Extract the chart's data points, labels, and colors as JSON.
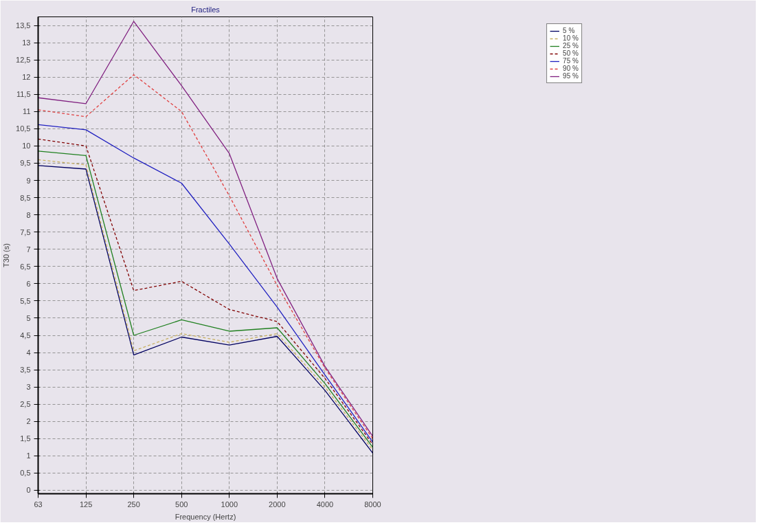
{
  "chart_data": {
    "type": "line",
    "title": "Fractiles",
    "xlabel": "Frequency (Hertz)",
    "ylabel": "T30 (s)",
    "categories": [
      "63",
      "125",
      "250",
      "500",
      "1000",
      "2000",
      "4000",
      "8000"
    ],
    "ylim": [
      -0.1,
      13.75
    ],
    "yticks": [
      0,
      {
        "value": 0.5,
        "label": "0,5"
      },
      1,
      {
        "value": 1.5,
        "label": "1,5"
      },
      2,
      {
        "value": 2.5,
        "label": "2,5"
      },
      3,
      {
        "value": 3.5,
        "label": "3,5"
      },
      4,
      {
        "value": 4.5,
        "label": "4,5"
      },
      5,
      {
        "value": 5.5,
        "label": "5,5"
      },
      6,
      {
        "value": 6.5,
        "label": "6,5"
      },
      7,
      {
        "value": 7.5,
        "label": "7,5"
      },
      8,
      {
        "value": 8.5,
        "label": "8,5"
      },
      9,
      {
        "value": 9.5,
        "label": "9,5"
      },
      10,
      {
        "value": 10.5,
        "label": "10,5"
      },
      11,
      {
        "value": 11.5,
        "label": "11,5"
      },
      12,
      {
        "value": 12.5,
        "label": "12,5"
      },
      13,
      {
        "value": 13.5,
        "label": "13,5"
      }
    ],
    "grid": true,
    "legend": "top right",
    "series": [
      {
        "name": "5 %",
        "color": "#000060",
        "line_style": "solid",
        "values": [
          9.43,
          9.33,
          3.93,
          4.45,
          4.22,
          4.47,
          2.9,
          1.08
        ]
      },
      {
        "name": "10 %",
        "color": "#c8b060",
        "line_style": "dashed",
        "values": [
          9.6,
          9.45,
          4.05,
          4.55,
          4.3,
          4.55,
          3.0,
          1.17
        ]
      },
      {
        "name": "25 %",
        "color": "#208020",
        "line_style": "solid",
        "values": [
          9.85,
          9.72,
          4.5,
          4.95,
          4.62,
          4.72,
          3.1,
          1.25
        ]
      },
      {
        "name": "50 %",
        "color": "#800000",
        "line_style": "dashed",
        "values": [
          10.2,
          10.0,
          5.8,
          6.07,
          5.25,
          4.9,
          3.25,
          1.33
        ]
      },
      {
        "name": "75 %",
        "color": "#2020c0",
        "line_style": "solid",
        "values": [
          10.62,
          10.47,
          9.65,
          8.92,
          7.15,
          5.32,
          3.35,
          1.4
        ]
      },
      {
        "name": "90 %",
        "color": "#e04040",
        "line_style": "dashed",
        "values": [
          11.05,
          10.85,
          12.07,
          11.0,
          8.55,
          5.95,
          3.55,
          1.5
        ]
      },
      {
        "name": "95 %",
        "color": "#802080",
        "line_style": "solid",
        "values": [
          11.4,
          11.23,
          13.62,
          11.75,
          9.78,
          6.15,
          3.6,
          1.57
        ]
      }
    ]
  }
}
